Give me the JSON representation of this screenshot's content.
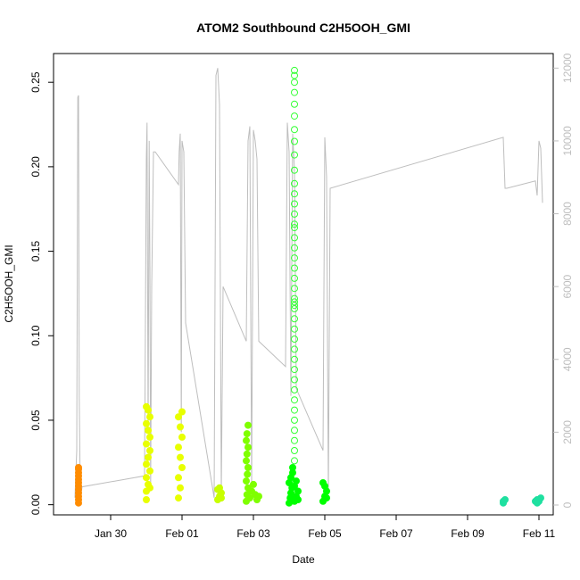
{
  "chart_data": {
    "type": "scatter",
    "title": "ATOM2 Southbound C2H5OOH_GMI",
    "xlabel": "Date",
    "ylabel": "C2H5OOH_GMI",
    "x_ticks": [
      "Jan 30",
      "Feb 01",
      "Feb 03",
      "Feb 05",
      "Feb 07",
      "Feb 09",
      "Feb 11"
    ],
    "x_tick_days": [
      1,
      3,
      5,
      7,
      9,
      11,
      13
    ],
    "xlim_days": [
      -0.6,
      13.4
    ],
    "y_ticks": [
      "0.00",
      "0.05",
      "0.10",
      "0.15",
      "0.20",
      "0.25"
    ],
    "y_tick_values": [
      0,
      0.05,
      0.1,
      0.15,
      0.2,
      0.25
    ],
    "ylim": [
      -0.006,
      0.267
    ],
    "y2_ticks": [
      "0",
      "2000",
      "4000",
      "6000",
      "8000",
      "10000",
      "12000"
    ],
    "y2_tick_values": [
      0,
      2000,
      4000,
      6000,
      8000,
      10000,
      12000
    ],
    "y2lim": [
      -270,
      12400
    ],
    "y2_color": "#bebebe",
    "grid": false,
    "legend": "none",
    "series": [
      {
        "color": "#ff8c00",
        "x": [
          0.1,
          0.1,
          0.1,
          0.1,
          0.1,
          0.1,
          0.1,
          0.1,
          0.1,
          0.1,
          0.1,
          0.1
        ],
        "y": [
          0.001,
          0.003,
          0.005,
          0.007,
          0.009,
          0.011,
          0.013,
          0.015,
          0.017,
          0.019,
          0.021,
          0.022
        ]
      },
      {
        "color": "#e8ff00",
        "x": [
          2.0,
          2.0,
          2.05,
          2.0,
          2.1,
          2.0,
          2.05,
          2.1,
          2.0,
          2.1,
          2.05,
          2.0,
          2.1,
          2.05,
          2.0,
          2.1,
          2.9,
          2.95,
          2.9,
          3.0,
          2.95,
          2.9,
          3.0,
          2.95,
          2.9,
          3.0
        ],
        "y": [
          0.003,
          0.008,
          0.012,
          0.016,
          0.02,
          0.024,
          0.028,
          0.032,
          0.036,
          0.04,
          0.044,
          0.048,
          0.052,
          0.056,
          0.058,
          0.01,
          0.004,
          0.01,
          0.016,
          0.022,
          0.028,
          0.034,
          0.04,
          0.046,
          0.052,
          0.055
        ]
      },
      {
        "color": "#c8ff00",
        "x": [
          4.0,
          4.05,
          4.1,
          4.0,
          4.05,
          4.1
        ],
        "y": [
          0.003,
          0.005,
          0.007,
          0.009,
          0.01,
          0.004
        ]
      },
      {
        "color": "#7fff00",
        "x": [
          4.8,
          4.82,
          4.85,
          4.8,
          4.83,
          4.85,
          4.8,
          4.82,
          4.85,
          4.8,
          4.82,
          4.85,
          4.9,
          4.95,
          5.0,
          5.05,
          5.1,
          5.15
        ],
        "y": [
          0.002,
          0.006,
          0.01,
          0.014,
          0.018,
          0.022,
          0.026,
          0.03,
          0.034,
          0.038,
          0.042,
          0.047,
          0.004,
          0.008,
          0.012,
          0.006,
          0.003,
          0.005
        ]
      },
      {
        "color": "#00ff00",
        "x": [
          6.0,
          6.03,
          6.05,
          6.08,
          6.0,
          6.05,
          6.1,
          6.1,
          6.15,
          6.2,
          6.25,
          6.15,
          6.2,
          6.25,
          6.95,
          7.0,
          7.05,
          7.0,
          6.95,
          7.05
        ],
        "y": [
          0.001,
          0.004,
          0.007,
          0.01,
          0.013,
          0.016,
          0.019,
          0.022,
          0.002,
          0.005,
          0.008,
          0.011,
          0.014,
          0.003,
          0.002,
          0.005,
          0.008,
          0.011,
          0.013,
          0.004
        ]
      },
      {
        "color": "#32ff32",
        "hollow": true,
        "x": [
          6.15,
          6.15,
          6.15,
          6.15,
          6.15,
          6.15,
          6.15,
          6.15,
          6.15,
          6.15,
          6.15,
          6.15,
          6.15,
          6.15,
          6.15,
          6.15,
          6.15,
          6.15,
          6.15,
          6.15,
          6.15,
          6.15,
          6.15,
          6.15,
          6.15,
          6.15,
          6.15,
          6.15,
          6.15,
          6.15,
          6.15,
          6.15,
          6.15,
          6.15,
          6.15,
          6.15,
          6.15,
          6.15,
          6.15,
          6.15,
          6.15
        ],
        "y": [
          0.026,
          0.032,
          0.038,
          0.044,
          0.05,
          0.056,
          0.062,
          0.068,
          0.074,
          0.08,
          0.086,
          0.092,
          0.098,
          0.104,
          0.11,
          0.116,
          0.118,
          0.12,
          0.122,
          0.128,
          0.134,
          0.14,
          0.146,
          0.152,
          0.158,
          0.164,
          0.166,
          0.172,
          0.178,
          0.184,
          0.19,
          0.198,
          0.207,
          0.215,
          0.222,
          0.23,
          0.237,
          0.244,
          0.25,
          0.254,
          0.257
        ]
      },
      {
        "color": "#1fe0a0",
        "x": [
          12.0,
          12.0,
          12.05,
          12.9,
          12.95,
          13.0,
          13.05,
          13.0,
          12.95
        ],
        "y": [
          0.001,
          0.002,
          0.003,
          0.002,
          0.003,
          0.002,
          0.004,
          0.003,
          0.001
        ]
      }
    ],
    "altitude_series": {
      "axis": "right",
      "color": "#bebebe",
      "x": [
        0.0,
        0.05,
        0.08,
        0.1,
        0.12,
        0.15,
        0.2,
        1.95,
        2.0,
        2.02,
        2.05,
        2.08,
        2.1,
        2.12,
        2.15,
        2.2,
        2.25,
        2.9,
        2.92,
        2.95,
        2.98,
        3.0,
        3.05,
        3.1,
        3.9,
        3.95,
        4.0,
        4.05,
        4.1,
        4.15,
        4.8,
        4.85,
        4.9,
        4.95,
        5.0,
        5.05,
        5.1,
        5.15,
        5.9,
        5.95,
        6.0,
        6.05,
        6.1,
        6.15,
        6.2,
        6.95,
        7.0,
        7.05,
        7.1,
        7.15,
        12.0,
        12.05,
        12.1,
        12.9,
        12.95,
        13.0,
        13.05,
        13.1
      ],
      "y": [
        200,
        1500,
        11200,
        11250,
        3000,
        200,
        500,
        800,
        9500,
        10500,
        2000,
        10000,
        6500,
        400,
        6000,
        9700,
        9700,
        8800,
        9700,
        10200,
        2000,
        10000,
        9700,
        5000,
        200,
        11800,
        12000,
        11000,
        300,
        6000,
        4500,
        10000,
        10400,
        500,
        10300,
        10000,
        9500,
        4500,
        3800,
        10500,
        9700,
        3000,
        10200,
        9200,
        3200,
        1500,
        10100,
        9000,
        300,
        8700,
        10100,
        8700,
        8700,
        8900,
        8500,
        10000,
        9800,
        8300
      ]
    }
  }
}
